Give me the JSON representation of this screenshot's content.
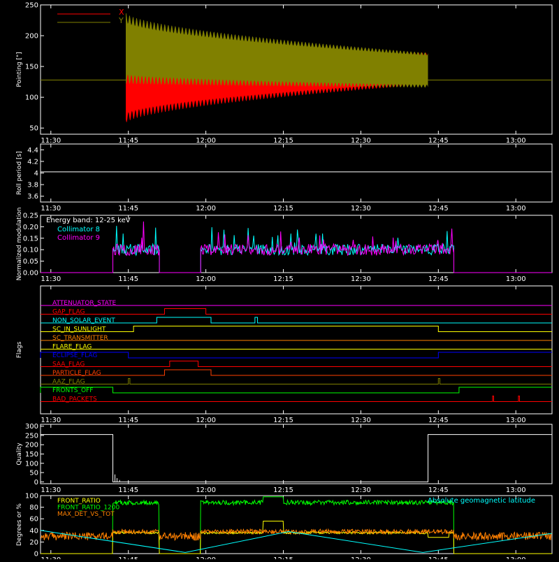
{
  "time_ticks": [
    "11:30",
    "11:45",
    "12:00",
    "12:15",
    "12:30",
    "12:45",
    "13:00"
  ],
  "time_tick_minutes": [
    0,
    15,
    30,
    45,
    60,
    75,
    90
  ],
  "time_range_minutes": [
    -2,
    97
  ],
  "colors": {
    "background": "#000000",
    "axes": "#ffffff",
    "x": "#ff0000",
    "y": "#808000",
    "coll8": "#00ffff",
    "coll9": "#ff00ff",
    "green": "#00ff00",
    "orange": "#ff8000",
    "yellow": "#ffff00",
    "cyan": "#00ffff"
  },
  "chart_data": [
    {
      "type": "area",
      "id": "pointing",
      "ylabel": "Pointing [\"]",
      "ylim": [
        40,
        250
      ],
      "yticks": [
        50,
        100,
        150,
        200,
        250
      ],
      "legend_position": "top-left",
      "series": [
        {
          "name": "X",
          "color": "#ff0000",
          "baseline": 128,
          "start": 14.5,
          "end": 73,
          "upper": [
            175,
            170
          ],
          "lower": [
            65,
            123
          ]
        },
        {
          "name": "Y",
          "color": "#808000",
          "baseline": 128,
          "start": 14.5,
          "end": 73,
          "upper": [
            230,
            170
          ],
          "lower": [
            130,
            118
          ]
        }
      ]
    },
    {
      "type": "line",
      "id": "roll",
      "ylabel": "Roll period [s]",
      "ylim": [
        3.5,
        4.5
      ],
      "yticks": [
        3.6,
        3.8,
        4.0,
        4.2,
        4.4
      ],
      "series": [
        {
          "name": "",
          "color": "#ffffff",
          "x": [
            -2,
            97
          ],
          "y": [
            4.02,
            4.02
          ]
        }
      ]
    },
    {
      "type": "bar",
      "id": "modulation",
      "ylabel": "Normalized modulation",
      "ylim": [
        0,
        0.25
      ],
      "yticks": [
        "0.00",
        "0.05",
        "0.10",
        "0.15",
        "0.20",
        "0.25"
      ],
      "annotation": "Energy band: 12-25 keV",
      "legend_position": "top-left",
      "intervals": [
        [
          12,
          21
        ],
        [
          29,
          78
        ]
      ],
      "series": [
        {
          "name": "Collimator 8",
          "color": "#00ffff",
          "mean": 0.1
        },
        {
          "name": "Collimator 9",
          "color": "#ff00ff",
          "mean": 0.1
        }
      ]
    },
    {
      "type": "line",
      "id": "flags",
      "ylabel": "Flags",
      "rows": [
        {
          "name": "ATTENUATOR_STATE",
          "color": "#ff00ff",
          "highs": []
        },
        {
          "name": "GAP_FLAG",
          "color": "#ff0000",
          "highs": [
            [
              22,
              30
            ]
          ]
        },
        {
          "name": "NON_SOLAR_EVENT",
          "color": "#00ffff",
          "highs": [
            [
              20.5,
              31
            ],
            [
              39.5,
              40
            ]
          ]
        },
        {
          "name": "SC_IN_SUNLIGHT",
          "color": "#ffff00",
          "highs": [
            [
              16,
              75
            ]
          ]
        },
        {
          "name": "SC_TRANSMITTER",
          "color": "#ff8000",
          "highs": []
        },
        {
          "name": "FLARE_FLAG",
          "color": "#ffff00",
          "highs": []
        },
        {
          "name": "ECLIPSE_FLAG",
          "color": "#0000ff",
          "highs": [
            [
              -2,
              15
            ],
            [
              75,
              97
            ]
          ]
        },
        {
          "name": "SAA_FLAG",
          "color": "#ff0000",
          "highs": [
            [
              23,
              28.5
            ]
          ]
        },
        {
          "name": "PARTICLE_FLAG",
          "color": "#ff4000",
          "highs": [
            [
              22,
              31
            ]
          ]
        },
        {
          "name": "AAZ_FLAG",
          "color": "#808000",
          "highs": [
            [
              15,
              15.3
            ],
            [
              75,
              75.3
            ]
          ]
        },
        {
          "name": "FRONTS_OFF",
          "color": "#00ff00",
          "highs": [
            [
              -2,
              12
            ],
            [
              79,
              97
            ]
          ]
        },
        {
          "name": "BAD_PACKETS",
          "color": "#ff0000",
          "highs": [
            [
              85.5,
              85.7
            ],
            [
              90.5,
              90.7
            ]
          ]
        }
      ]
    },
    {
      "type": "line",
      "id": "quality",
      "ylabel": "Quality",
      "ylim": [
        -10,
        310
      ],
      "yticks": [
        0,
        50,
        100,
        150,
        200,
        250,
        300
      ],
      "series": [
        {
          "name": "",
          "color": "#ffffff",
          "x": [
            -2,
            12,
            12,
            73,
            73,
            97
          ],
          "y": [
            255,
            255,
            0,
            0,
            255,
            255
          ]
        }
      ]
    },
    {
      "type": "line",
      "id": "ratios",
      "ylabel": "Degrees or %",
      "ylim": [
        0,
        100
      ],
      "yticks": [
        0,
        20,
        40,
        60,
        80,
        100
      ],
      "legend_position": "top-left",
      "series": [
        {
          "name": "FRONT_RATIO",
          "color": "#ffff00"
        },
        {
          "name": "FRONT_RATIO_1200",
          "color": "#00ff00"
        },
        {
          "name": "MAX_DET_VS_TOT",
          "color": "#ff8000"
        },
        {
          "name": "Absolute geomagnetic latitude",
          "color": "#00ffff",
          "x": [
            -2,
            26,
            46,
            72,
            97
          ],
          "y": [
            40,
            2,
            38,
            2,
            35
          ]
        }
      ]
    }
  ]
}
